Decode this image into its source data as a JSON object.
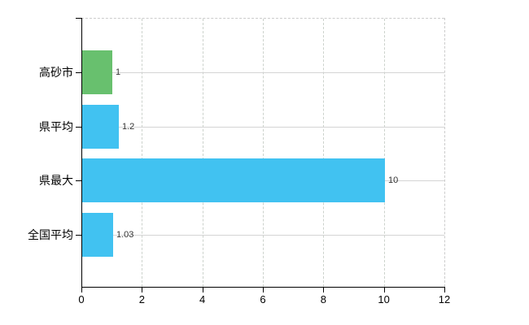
{
  "chart_data": {
    "type": "bar",
    "orientation": "horizontal",
    "title": "",
    "xlabel": "",
    "ylabel": "",
    "categories": [
      "高砂市",
      "県平均",
      "県最大",
      "全国平均"
    ],
    "values": [
      1,
      1.2,
      10,
      1.03
    ],
    "value_labels": [
      "1",
      "1.2",
      "10",
      "1.03"
    ],
    "series": [
      {
        "name": "",
        "values": [
          1,
          1.2,
          10,
          1.03
        ]
      }
    ],
    "bar_colors": [
      "#68c06e",
      "#41c2f1",
      "#41c2f1",
      "#41c2f1"
    ],
    "xlim": [
      0,
      12
    ],
    "x_ticks": [
      0,
      2,
      4,
      6,
      8,
      10,
      12
    ],
    "x_tick_labels": [
      "0",
      "2",
      "4",
      "6",
      "8",
      "10",
      "12"
    ],
    "grid": "on",
    "legend_position": "none"
  },
  "colors": {
    "background": "#ffffff",
    "axis": "#000000",
    "vertical_gridline": "#ccd2cc",
    "horizontal_gridline": "#d4d4d4",
    "dashed_border": "#cccccc",
    "value_label_text": "#333333",
    "tick_label_text": "#000000",
    "green_bar": "#68c06e",
    "blue_bar": "#41c2f1"
  }
}
